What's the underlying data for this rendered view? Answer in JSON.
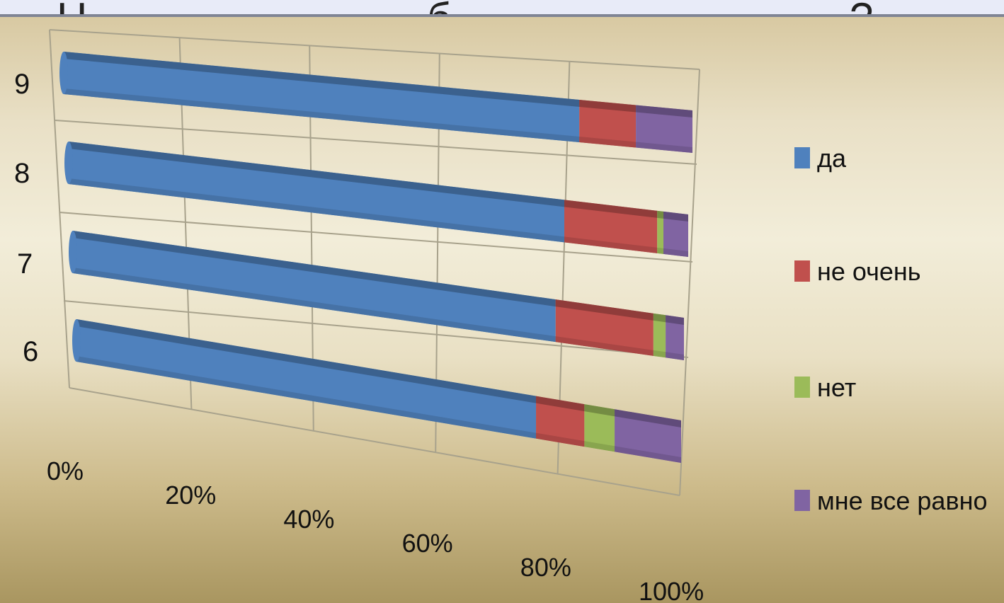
{
  "chart_data": {
    "type": "bar",
    "orientation": "horizontal",
    "stacked": "percent",
    "style": "3d-cylinder",
    "title": "",
    "xlabel": "",
    "ylabel": "",
    "categories": [
      "6",
      "7",
      "8",
      "9"
    ],
    "x_ticks": [
      "0%",
      "20%",
      "40%",
      "60%",
      "80%",
      "100%"
    ],
    "xlim": [
      0,
      100
    ],
    "grid": true,
    "legend_position": "right",
    "series": [
      {
        "name": "да",
        "color": "#4f81bd",
        "values": [
          76,
          79,
          80,
          82
        ]
      },
      {
        "name": "не очень",
        "color": "#c0504d",
        "values": [
          8,
          16,
          15,
          9
        ]
      },
      {
        "name": "нет",
        "color": "#9bbb59",
        "values": [
          5,
          2,
          1,
          0
        ]
      },
      {
        "name": "мне все равно",
        "color": "#8064a2",
        "values": [
          11,
          3,
          4,
          9
        ]
      }
    ]
  }
}
